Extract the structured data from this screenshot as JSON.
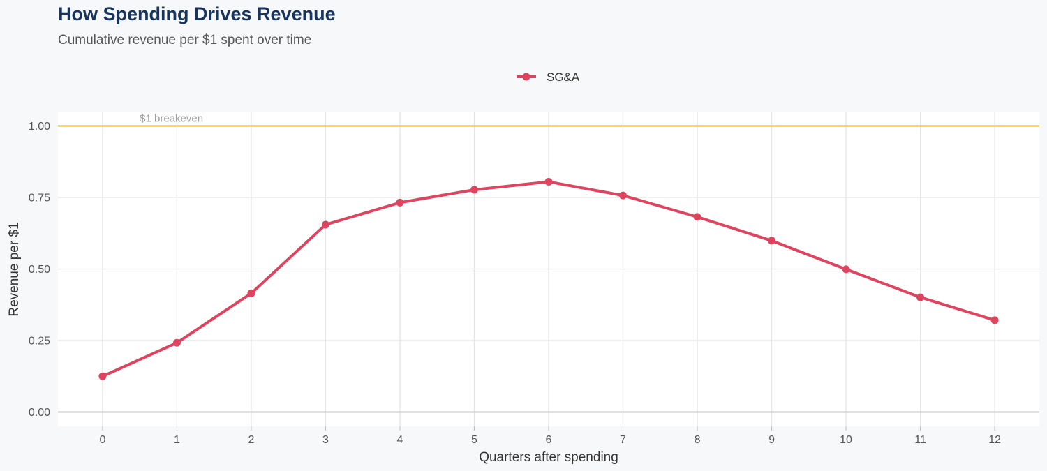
{
  "chart_data": {
    "type": "line",
    "title": "How Spending Drives Revenue",
    "subtitle": "Cumulative revenue per $1 spent over time",
    "xlabel": "Quarters after spending",
    "ylabel": "Revenue per $1",
    "x": [
      0,
      1,
      2,
      3,
      4,
      5,
      6,
      7,
      8,
      9,
      10,
      11,
      12
    ],
    "series": [
      {
        "name": "SG&A",
        "color": "#e0435e",
        "values": [
          0.125,
          0.242,
          0.415,
          0.655,
          0.732,
          0.777,
          0.805,
          0.757,
          0.682,
          0.599,
          0.499,
          0.401,
          0.321
        ]
      }
    ],
    "xlim": [
      -0.6,
      12.6
    ],
    "ylim": [
      -0.05,
      1.05
    ],
    "y_ticks": [
      "0.00",
      "0.25",
      "0.50",
      "0.75",
      "1.00"
    ],
    "x_ticks": [
      "0",
      "1",
      "2",
      "3",
      "4",
      "5",
      "6",
      "7",
      "8",
      "9",
      "10",
      "11",
      "12"
    ],
    "reference_line": {
      "value": 1.0,
      "label": "$1 breakeven",
      "color": "#f2c94c"
    },
    "legend_position": "top-center",
    "grid": true
  }
}
